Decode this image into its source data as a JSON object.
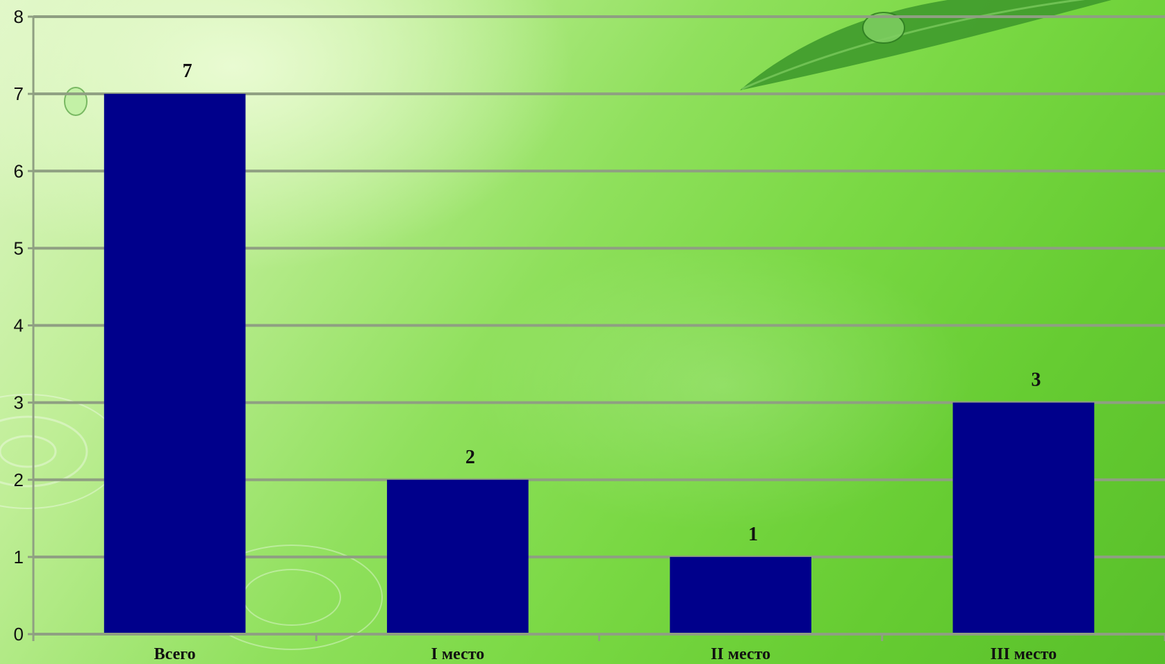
{
  "chart_data": {
    "type": "bar",
    "categories": [
      "Всего",
      "I место",
      "II место",
      "III место"
    ],
    "values": [
      7,
      2,
      1,
      3
    ],
    "data_labels": [
      "7",
      "2",
      "1",
      "3"
    ],
    "title": "",
    "xlabel": "",
    "ylabel": "",
    "ylim": [
      0,
      8
    ],
    "yticks": [
      "0",
      "1",
      "2",
      "3",
      "4",
      "5",
      "6",
      "7",
      "8"
    ],
    "grid": true,
    "legend": "none",
    "colors": {
      "bar": "#00008b",
      "grid": "#8f9f82",
      "axis": "#8f9f82",
      "text": "#111111"
    }
  }
}
